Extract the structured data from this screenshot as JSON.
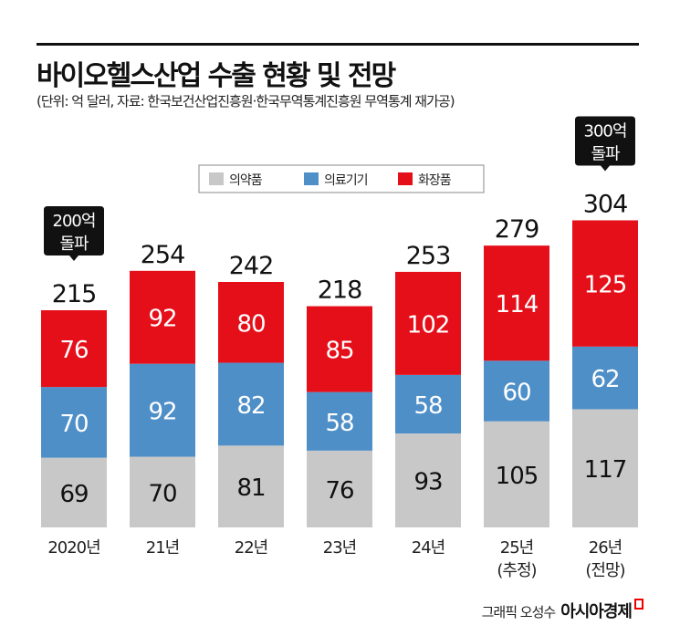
{
  "title": "바이오헬스산업 수출 현황 및 전망",
  "subtitle": "(단위: 억 달러, 자료: 한국보건산업진흥원·한국무역통계진흥원 무역통계 재가공)",
  "footer": {
    "credit": "그래픽 오성수",
    "brand": "아시아경제"
  },
  "chart_data": {
    "type": "bar",
    "stacked": true,
    "categories": [
      "2020년",
      "21년",
      "22년",
      "23년",
      "24년",
      "25년\n(추정)",
      "26년\n(전망)"
    ],
    "series": [
      {
        "name": "의약품",
        "color": "#c8c8c8",
        "values": [
          69,
          70,
          81,
          76,
          93,
          105,
          117
        ]
      },
      {
        "name": "의료기기",
        "color": "#4f8fc8",
        "values": [
          70,
          92,
          82,
          58,
          58,
          60,
          62
        ]
      },
      {
        "name": "화장품",
        "color": "#e50f1a",
        "values": [
          76,
          92,
          80,
          85,
          102,
          114,
          125
        ]
      }
    ],
    "totals": [
      215,
      254,
      242,
      218,
      253,
      279,
      304
    ],
    "annotations": [
      {
        "category": "2020년",
        "text": "200억\n돌파"
      },
      {
        "category": "26년\n(전망)",
        "text": "300억\n돌파"
      }
    ],
    "legend": "top-center",
    "grid": false
  }
}
